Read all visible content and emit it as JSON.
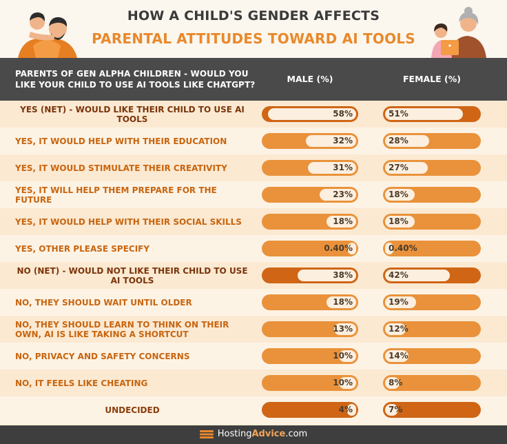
{
  "title_line1": "HOW A CHILD'S GENDER AFFECTS",
  "title_line2": "PARENTAL ATTITUDES TOWARD AI TOOLS",
  "question": "PARENTS OF GEN ALPHA CHILDREN - WOULD YOU LIKE YOUR CHILD TO USE AI TOOLS LIKE CHATGPT?",
  "col_male": "MALE (%)",
  "col_female": "FEMALE (%)",
  "brand_part1": "Hosting",
  "brand_part2": "Advice",
  "brand_part3": ".com",
  "colors": {
    "accent": "#e8892b",
    "net": "#cf6515",
    "bar": "#e9923b",
    "dark": "#4a4a4a"
  },
  "chart_data": {
    "type": "bar",
    "title": "HOW A CHILD'S GENDER AFFECTS PARENTAL ATTITUDES TOWARD AI TOOLS",
    "categories": [
      "YES (NET) - WOULD LIKE THEIR CHILD TO USE AI TOOLS",
      "YES, IT WOULD HELP WITH THEIR EDUCATION",
      "YES, IT WOULD STIMULATE THEIR CREATIVITY",
      "YES, IT WILL HELP THEM PREPARE FOR THE FUTURE",
      "YES, IT WOULD HELP WITH THEIR SOCIAL SKILLS",
      "YES, OTHER PLEASE SPECIFY",
      "NO (NET) - WOULD NOT LIKE THEIR CHILD TO USE AI TOOLS",
      "NO, THEY SHOULD WAIT UNTIL OLDER",
      "NO, THEY SHOULD LEARN TO THINK ON THEIR OWN, AI IS LIKE TAKING A SHORTCUT",
      "NO, PRIVACY AND SAFETY CONCERNS",
      "NO, IT FEELS LIKE CHEATING",
      "UNDECIDED"
    ],
    "net_rows": [
      0,
      6,
      11
    ],
    "series": [
      {
        "name": "MALE (%)",
        "values": [
          58,
          32,
          31,
          23,
          18,
          0.4,
          38,
          18,
          13,
          10,
          10,
          4
        ],
        "labels": [
          "58%",
          "32%",
          "31%",
          "23%",
          "18%",
          "0.40%",
          "38%",
          "18%",
          "13%",
          "10%",
          "10%",
          "4%"
        ]
      },
      {
        "name": "FEMALE (%)",
        "values": [
          51,
          28,
          27,
          18,
          18,
          0.4,
          42,
          19,
          12,
          14,
          8,
          7
        ],
        "labels": [
          "51%",
          "28%",
          "27%",
          "18%",
          "18%",
          "0.40%",
          "42%",
          "19%",
          "12%",
          "14%",
          "8%",
          "7%"
        ]
      }
    ],
    "xlim": [
      0,
      100
    ]
  }
}
